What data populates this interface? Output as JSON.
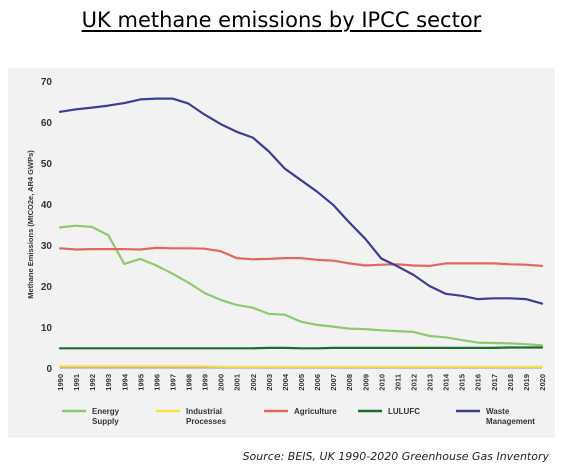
{
  "chart_data": {
    "type": "line",
    "title": "UK methane emissions by IPCC sector",
    "xlabel": "",
    "ylabel": "Methane Emissions (MtCO2e, AR4 GWPs)",
    "ylim": [
      0,
      70
    ],
    "yticks": [
      0,
      10,
      20,
      30,
      40,
      50,
      60,
      70
    ],
    "grid": false,
    "legend": "bottom",
    "x": [
      "1990",
      "1991",
      "1992",
      "1993",
      "1994",
      "1995",
      "1996",
      "1997",
      "1998",
      "1999",
      "2000",
      "2001",
      "2002",
      "2003",
      "2004",
      "2005",
      "2006",
      "2007",
      "2008",
      "2009",
      "2010",
      "2011",
      "2012",
      "2013",
      "2014",
      "2015",
      "2016",
      "2017",
      "2018",
      "2019",
      "2020"
    ],
    "series": [
      {
        "name": "Energy Supply",
        "color": "#8ec96e",
        "values": [
          34.3,
          34.7,
          34.4,
          32.4,
          25.4,
          26.6,
          25.0,
          23.0,
          20.8,
          18.3,
          16.6,
          15.4,
          14.7,
          13.2,
          13.0,
          11.3,
          10.5,
          10.1,
          9.6,
          9.5,
          9.2,
          9.0,
          8.8,
          7.8,
          7.5,
          6.8,
          6.2,
          6.1,
          6.0,
          5.8,
          5.5
        ]
      },
      {
        "name": "Industrial Processes",
        "color": "#f5e04a",
        "values": [
          0.4,
          0.4,
          0.4,
          0.4,
          0.4,
          0.4,
          0.4,
          0.4,
          0.4,
          0.4,
          0.3,
          0.3,
          0.3,
          0.3,
          0.3,
          0.3,
          0.3,
          0.3,
          0.3,
          0.3,
          0.3,
          0.3,
          0.3,
          0.3,
          0.3,
          0.3,
          0.3,
          0.3,
          0.3,
          0.3,
          0.3
        ]
      },
      {
        "name": "Agriculture",
        "color": "#e0685e",
        "values": [
          29.2,
          28.9,
          29.0,
          29.0,
          29.0,
          28.9,
          29.3,
          29.2,
          29.2,
          29.1,
          28.5,
          26.8,
          26.5,
          26.6,
          26.8,
          26.8,
          26.4,
          26.2,
          25.5,
          25.0,
          25.2,
          25.3,
          25.0,
          24.9,
          25.5,
          25.5,
          25.5,
          25.5,
          25.3,
          25.2,
          24.9
        ]
      },
      {
        "name": "LULUFC",
        "color": "#1e6b2e",
        "values": [
          4.8,
          4.8,
          4.8,
          4.8,
          4.8,
          4.8,
          4.8,
          4.8,
          4.8,
          4.8,
          4.8,
          4.8,
          4.8,
          4.9,
          4.9,
          4.8,
          4.8,
          4.9,
          4.9,
          4.9,
          4.9,
          4.9,
          4.9,
          4.9,
          4.9,
          4.9,
          4.9,
          4.9,
          5.0,
          5.0,
          5.0
        ]
      },
      {
        "name": "Waste Management",
        "color": "#3c3d94",
        "values": [
          62.5,
          63.1,
          63.5,
          64.0,
          64.6,
          65.5,
          65.7,
          65.7,
          64.5,
          61.8,
          59.5,
          57.6,
          56.2,
          52.8,
          48.6,
          45.8,
          43.0,
          39.8,
          35.5,
          31.5,
          26.7,
          24.8,
          22.7,
          20.0,
          18.1,
          17.6,
          16.8,
          17.0,
          17.0,
          16.8,
          15.7
        ]
      }
    ],
    "legend_entries": [
      {
        "line1": "Energy",
        "line2": "Supply",
        "color": "#8ec96e"
      },
      {
        "line1": "Industrial",
        "line2": "Processes",
        "color": "#f5e04a"
      },
      {
        "line1": "Agriculture",
        "line2": "",
        "color": "#e0685e"
      },
      {
        "line1": "LULUFC",
        "line2": "",
        "color": "#1e6b2e"
      },
      {
        "line1": "Waste",
        "line2": "Management",
        "color": "#3c3d94"
      }
    ],
    "source": "Source: BEIS, UK 1990-2020 Greenhouse Gas Inventory"
  }
}
